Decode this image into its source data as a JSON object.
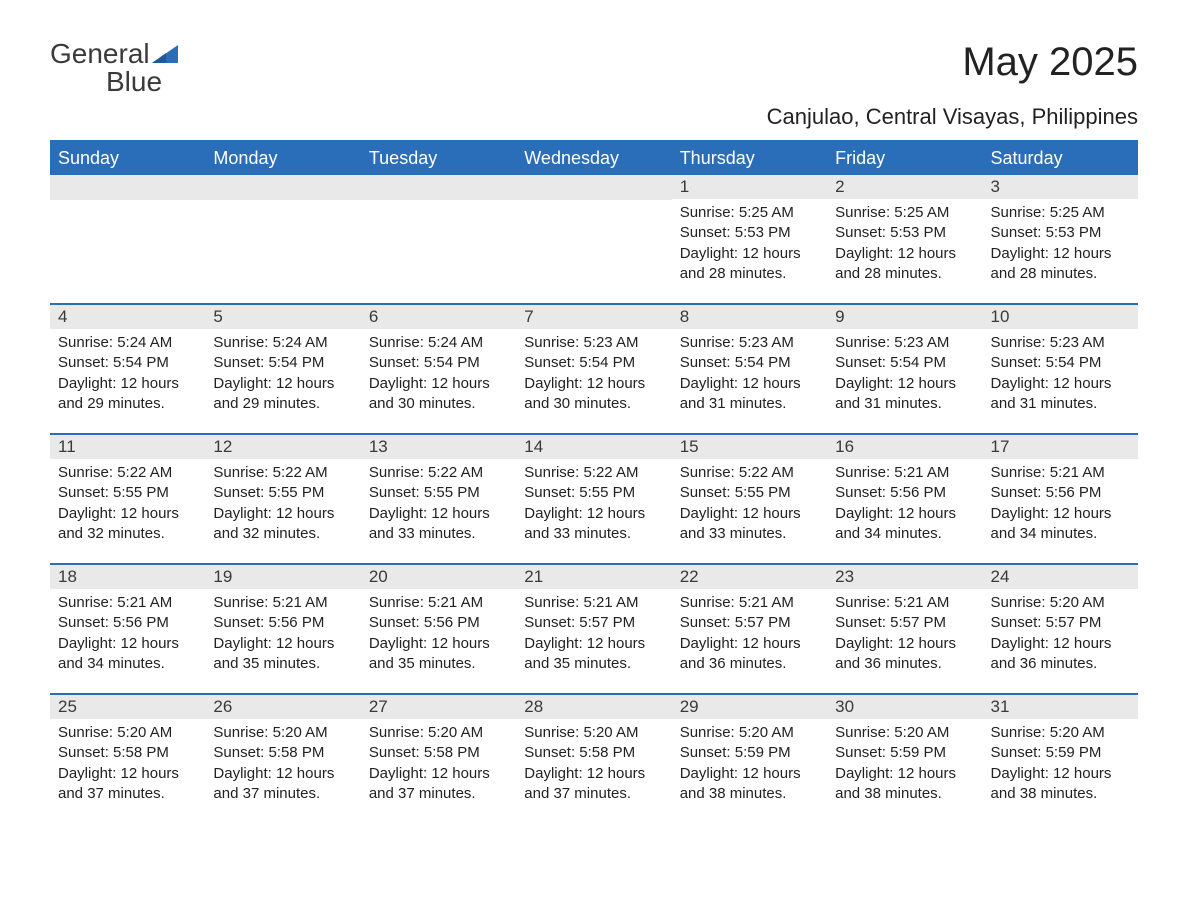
{
  "brand": {
    "word1": "General",
    "word2": "Blue",
    "text_color": "#3a3a3a",
    "accent_color": "#2a6db8"
  },
  "title": "May 2025",
  "location": "Canjulao, Central Visayas, Philippines",
  "colors": {
    "header_bg": "#2a6db8",
    "header_text": "#ffffff",
    "daynum_bg": "#e9e9e9",
    "rule": "#2a6db8",
    "body_text": "#222222",
    "page_bg": "#ffffff"
  },
  "typography": {
    "title_fontsize": 40,
    "location_fontsize": 22,
    "header_fontsize": 18,
    "daynum_fontsize": 17,
    "body_fontsize": 15
  },
  "layout": {
    "columns": 7,
    "rows": 5
  },
  "day_headers": [
    "Sunday",
    "Monday",
    "Tuesday",
    "Wednesday",
    "Thursday",
    "Friday",
    "Saturday"
  ],
  "weeks": [
    [
      {
        "n": "",
        "sunrise": "",
        "sunset": "",
        "daylight": ""
      },
      {
        "n": "",
        "sunrise": "",
        "sunset": "",
        "daylight": ""
      },
      {
        "n": "",
        "sunrise": "",
        "sunset": "",
        "daylight": ""
      },
      {
        "n": "",
        "sunrise": "",
        "sunset": "",
        "daylight": ""
      },
      {
        "n": "1",
        "sunrise": "Sunrise: 5:25 AM",
        "sunset": "Sunset: 5:53 PM",
        "daylight": "Daylight: 12 hours and 28 minutes."
      },
      {
        "n": "2",
        "sunrise": "Sunrise: 5:25 AM",
        "sunset": "Sunset: 5:53 PM",
        "daylight": "Daylight: 12 hours and 28 minutes."
      },
      {
        "n": "3",
        "sunrise": "Sunrise: 5:25 AM",
        "sunset": "Sunset: 5:53 PM",
        "daylight": "Daylight: 12 hours and 28 minutes."
      }
    ],
    [
      {
        "n": "4",
        "sunrise": "Sunrise: 5:24 AM",
        "sunset": "Sunset: 5:54 PM",
        "daylight": "Daylight: 12 hours and 29 minutes."
      },
      {
        "n": "5",
        "sunrise": "Sunrise: 5:24 AM",
        "sunset": "Sunset: 5:54 PM",
        "daylight": "Daylight: 12 hours and 29 minutes."
      },
      {
        "n": "6",
        "sunrise": "Sunrise: 5:24 AM",
        "sunset": "Sunset: 5:54 PM",
        "daylight": "Daylight: 12 hours and 30 minutes."
      },
      {
        "n": "7",
        "sunrise": "Sunrise: 5:23 AM",
        "sunset": "Sunset: 5:54 PM",
        "daylight": "Daylight: 12 hours and 30 minutes."
      },
      {
        "n": "8",
        "sunrise": "Sunrise: 5:23 AM",
        "sunset": "Sunset: 5:54 PM",
        "daylight": "Daylight: 12 hours and 31 minutes."
      },
      {
        "n": "9",
        "sunrise": "Sunrise: 5:23 AM",
        "sunset": "Sunset: 5:54 PM",
        "daylight": "Daylight: 12 hours and 31 minutes."
      },
      {
        "n": "10",
        "sunrise": "Sunrise: 5:23 AM",
        "sunset": "Sunset: 5:54 PM",
        "daylight": "Daylight: 12 hours and 31 minutes."
      }
    ],
    [
      {
        "n": "11",
        "sunrise": "Sunrise: 5:22 AM",
        "sunset": "Sunset: 5:55 PM",
        "daylight": "Daylight: 12 hours and 32 minutes."
      },
      {
        "n": "12",
        "sunrise": "Sunrise: 5:22 AM",
        "sunset": "Sunset: 5:55 PM",
        "daylight": "Daylight: 12 hours and 32 minutes."
      },
      {
        "n": "13",
        "sunrise": "Sunrise: 5:22 AM",
        "sunset": "Sunset: 5:55 PM",
        "daylight": "Daylight: 12 hours and 33 minutes."
      },
      {
        "n": "14",
        "sunrise": "Sunrise: 5:22 AM",
        "sunset": "Sunset: 5:55 PM",
        "daylight": "Daylight: 12 hours and 33 minutes."
      },
      {
        "n": "15",
        "sunrise": "Sunrise: 5:22 AM",
        "sunset": "Sunset: 5:55 PM",
        "daylight": "Daylight: 12 hours and 33 minutes."
      },
      {
        "n": "16",
        "sunrise": "Sunrise: 5:21 AM",
        "sunset": "Sunset: 5:56 PM",
        "daylight": "Daylight: 12 hours and 34 minutes."
      },
      {
        "n": "17",
        "sunrise": "Sunrise: 5:21 AM",
        "sunset": "Sunset: 5:56 PM",
        "daylight": "Daylight: 12 hours and 34 minutes."
      }
    ],
    [
      {
        "n": "18",
        "sunrise": "Sunrise: 5:21 AM",
        "sunset": "Sunset: 5:56 PM",
        "daylight": "Daylight: 12 hours and 34 minutes."
      },
      {
        "n": "19",
        "sunrise": "Sunrise: 5:21 AM",
        "sunset": "Sunset: 5:56 PM",
        "daylight": "Daylight: 12 hours and 35 minutes."
      },
      {
        "n": "20",
        "sunrise": "Sunrise: 5:21 AM",
        "sunset": "Sunset: 5:56 PM",
        "daylight": "Daylight: 12 hours and 35 minutes."
      },
      {
        "n": "21",
        "sunrise": "Sunrise: 5:21 AM",
        "sunset": "Sunset: 5:57 PM",
        "daylight": "Daylight: 12 hours and 35 minutes."
      },
      {
        "n": "22",
        "sunrise": "Sunrise: 5:21 AM",
        "sunset": "Sunset: 5:57 PM",
        "daylight": "Daylight: 12 hours and 36 minutes."
      },
      {
        "n": "23",
        "sunrise": "Sunrise: 5:21 AM",
        "sunset": "Sunset: 5:57 PM",
        "daylight": "Daylight: 12 hours and 36 minutes."
      },
      {
        "n": "24",
        "sunrise": "Sunrise: 5:20 AM",
        "sunset": "Sunset: 5:57 PM",
        "daylight": "Daylight: 12 hours and 36 minutes."
      }
    ],
    [
      {
        "n": "25",
        "sunrise": "Sunrise: 5:20 AM",
        "sunset": "Sunset: 5:58 PM",
        "daylight": "Daylight: 12 hours and 37 minutes."
      },
      {
        "n": "26",
        "sunrise": "Sunrise: 5:20 AM",
        "sunset": "Sunset: 5:58 PM",
        "daylight": "Daylight: 12 hours and 37 minutes."
      },
      {
        "n": "27",
        "sunrise": "Sunrise: 5:20 AM",
        "sunset": "Sunset: 5:58 PM",
        "daylight": "Daylight: 12 hours and 37 minutes."
      },
      {
        "n": "28",
        "sunrise": "Sunrise: 5:20 AM",
        "sunset": "Sunset: 5:58 PM",
        "daylight": "Daylight: 12 hours and 37 minutes."
      },
      {
        "n": "29",
        "sunrise": "Sunrise: 5:20 AM",
        "sunset": "Sunset: 5:59 PM",
        "daylight": "Daylight: 12 hours and 38 minutes."
      },
      {
        "n": "30",
        "sunrise": "Sunrise: 5:20 AM",
        "sunset": "Sunset: 5:59 PM",
        "daylight": "Daylight: 12 hours and 38 minutes."
      },
      {
        "n": "31",
        "sunrise": "Sunrise: 5:20 AM",
        "sunset": "Sunset: 5:59 PM",
        "daylight": "Daylight: 12 hours and 38 minutes."
      }
    ]
  ]
}
